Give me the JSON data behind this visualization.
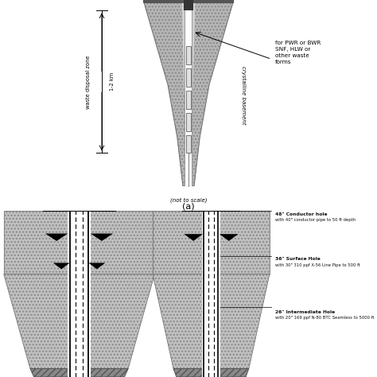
{
  "bg_color": "#ffffff",
  "panel_a": {
    "label": "(a)",
    "note_to_scale": "(not to scale)",
    "waste_zone_label": "waste disposal zone",
    "depth_label": "1-2 km",
    "crystalline_label": "crystalline basement",
    "waste_label": "for PWR or BWR\nSNF, HLW or\nother waste\nforms"
  },
  "panel_b": {
    "annotations": [
      {
        "title": "48\" Conductor hole",
        "detail": "with 40\" conductor pipe to 50 ft depth"
      },
      {
        "title": "36\" Surface Hole",
        "detail": "with 30\" 310 ppf X-56 Line Pipe to 500 ft"
      },
      {
        "title": "26\" Intermediate Hole",
        "detail": "with 20\" 169 ppf N-80 BTC Seamless to 5000 ft"
      }
    ]
  }
}
